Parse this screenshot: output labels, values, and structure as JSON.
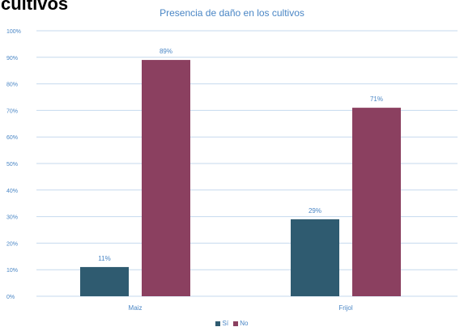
{
  "page": {
    "heading": "cultivos"
  },
  "chart_data": {
    "type": "bar",
    "title": "Presencia de daño en los cultivos",
    "categories": [
      "Maiz",
      "Frijol"
    ],
    "series": [
      {
        "name": "Sí",
        "values": [
          11,
          29
        ],
        "labels": [
          "11%",
          "29%"
        ],
        "color": "#2f5b70"
      },
      {
        "name": "No",
        "values": [
          89,
          71
        ],
        "labels": [
          "89%",
          "71%"
        ],
        "color": "#8b4060"
      }
    ],
    "y_ticks": [
      "0%",
      "10%",
      "20%",
      "30%",
      "40%",
      "50%",
      "60%",
      "70%",
      "80%",
      "90%",
      "100%"
    ],
    "ylim": [
      0,
      100
    ],
    "xlabel": "",
    "ylabel": "",
    "grid": true,
    "legend_position": "bottom",
    "colors": {
      "grid": "#c5d9ee",
      "text": "#4a86c5",
      "label": "#4a86c5"
    }
  }
}
